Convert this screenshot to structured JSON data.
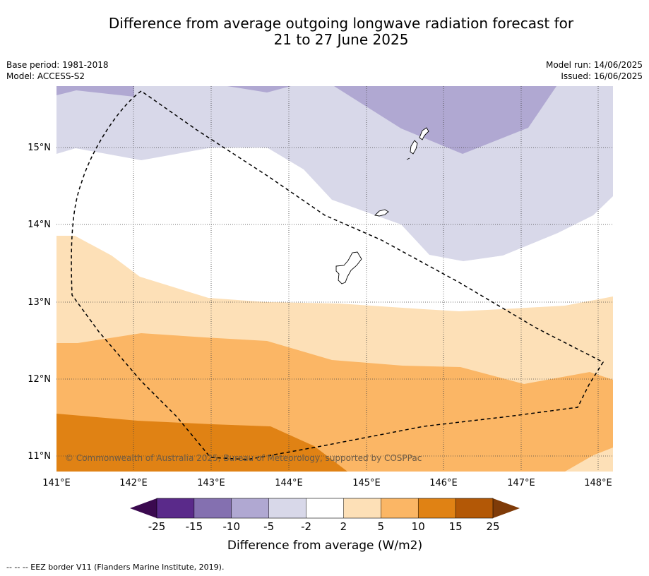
{
  "title": {
    "line1": "Difference from average outgoing longwave radiation forecast for",
    "line2": "21 to 27 June 2025"
  },
  "meta": {
    "base_period": "Base period: 1981-2018",
    "model": "Model: ACCESS-S2",
    "model_run": "Model run: 14/06/2025",
    "issued": "Issued: 16/06/2025"
  },
  "map": {
    "lon_labels": [
      "141°E",
      "142°E",
      "143°E",
      "144°E",
      "145°E",
      "146°E",
      "147°E",
      "148°E"
    ],
    "lat_labels": [
      "15°N",
      "14°N",
      "13°N",
      "12°N",
      "11°N"
    ],
    "copyright": "© Commonwealth of Australia 2025, Bureau of Meteorology, supported by COSPPac",
    "grid": true,
    "features": [
      "EEZ boundary (dashed)",
      "Guam",
      "Rota",
      "Aguijan",
      "Tinian",
      "Saipan"
    ]
  },
  "colorbar": {
    "label": "Difference from average (W/m2)",
    "ticks": [
      "-25",
      "-15",
      "-10",
      "-5",
      "-2",
      "2",
      "5",
      "10",
      "15",
      "25"
    ],
    "colors": {
      "below_min": "#3b0a4f",
      "bins": [
        "#5a2a8a",
        "#8470b0",
        "#b0a8d2",
        "#d8d8e9",
        "#ffffff",
        "#fde0b7",
        "#fbb665",
        "#e08214",
        "#b35806"
      ],
      "above_max": "#7f3b08"
    }
  },
  "footnote": "--  --  -- EEZ border V11 (Flanders Marine Institute, 2019)."
}
